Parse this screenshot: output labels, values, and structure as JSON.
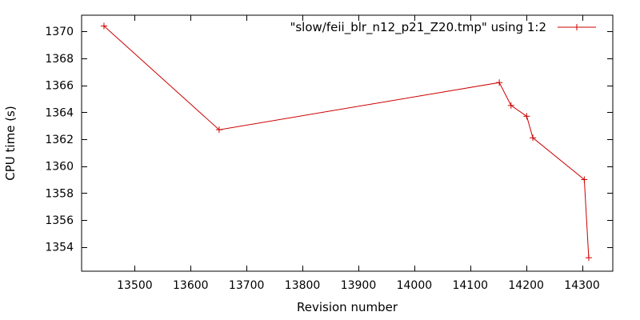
{
  "chart_data": {
    "type": "line",
    "xlabel": "Revision number",
    "ylabel": "CPU time (s)",
    "xlim": [
      13405,
      14355
    ],
    "ylim": [
      1352.2,
      1371.2
    ],
    "x_ticks": [
      13500,
      13600,
      13700,
      13800,
      13900,
      14000,
      14100,
      14200,
      14300
    ],
    "y_ticks": [
      1354,
      1356,
      1358,
      1360,
      1362,
      1364,
      1366,
      1368,
      1370
    ],
    "grid": false,
    "legend_position": "top-right",
    "series": [
      {
        "name": "\"slow/feii_blr_n12_p21_Z20.tmp\" using 1:2",
        "color": "#cc0000",
        "marker": "plus",
        "x": [
          13445,
          13651,
          14152,
          14173,
          14201,
          14212,
          14304,
          14312
        ],
        "y": [
          1370.4,
          1362.7,
          1366.2,
          1364.5,
          1363.7,
          1362.1,
          1359.0,
          1353.2
        ]
      }
    ]
  }
}
